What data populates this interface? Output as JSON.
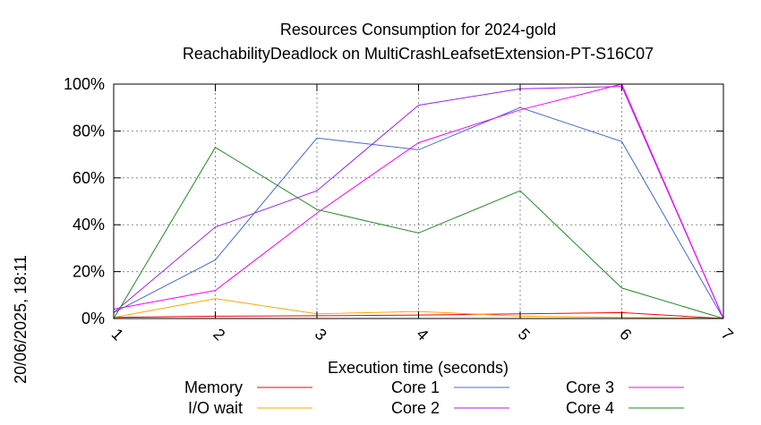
{
  "chart_data": {
    "type": "line",
    "title": "Resources Consumption for 2024-gold",
    "subtitle": "ReachabilityDeadlock on MultiCrashLeafsetExtension-PT-S16C07",
    "xlabel": "Execution time (seconds)",
    "ylabel": "",
    "x": [
      1,
      2,
      3,
      4,
      5,
      6,
      7
    ],
    "xlim": [
      1,
      7
    ],
    "ylim": [
      0,
      100
    ],
    "x_ticks": [
      "1",
      "2",
      "3",
      "4",
      "5",
      "6",
      "7"
    ],
    "y_ticks": [
      "0%",
      "20%",
      "40%",
      "60%",
      "80%",
      "100%"
    ],
    "grid": true,
    "legend_position": "bottom",
    "series": [
      {
        "name": "Memory",
        "color": "#ff0000",
        "values": [
          0.5,
          1,
          1.2,
          1.5,
          2,
          2.5,
          0
        ]
      },
      {
        "name": "I/O wait",
        "color": "#ffa500",
        "values": [
          0.5,
          8.5,
          2,
          3,
          1,
          0.5,
          0
        ]
      },
      {
        "name": "Core 1",
        "color": "#4169e1",
        "values": [
          2.5,
          25,
          77,
          72,
          90,
          75.5,
          0
        ]
      },
      {
        "name": "Core 2",
        "color": "#a020f0",
        "values": [
          2.5,
          39,
          54.5,
          91,
          98,
          99,
          0
        ]
      },
      {
        "name": "Core 3",
        "color": "#ff00ff",
        "values": [
          4,
          12,
          45,
          75,
          89,
          100,
          0
        ]
      },
      {
        "name": "Core 4",
        "color": "#228b22",
        "values": [
          0,
          73,
          46.5,
          36.5,
          54.5,
          13,
          0
        ]
      }
    ]
  },
  "side_label": "20/06/2025, 18:11"
}
